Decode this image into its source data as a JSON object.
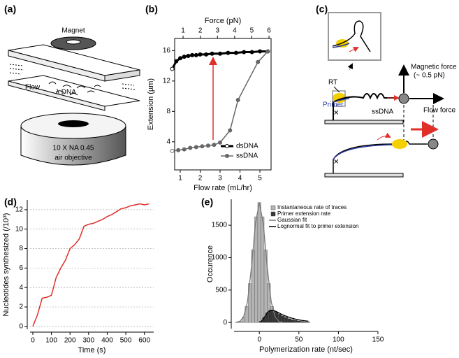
{
  "panel_labels": [
    "(a)",
    "(b)",
    "(c)",
    "(d)",
    "(e)"
  ],
  "diagram_a": {
    "magnet": "Magnet",
    "flow": "Flow",
    "dna": "λ DNA",
    "objective_1": "10 X NA 0.45",
    "objective_2": "air objective"
  },
  "diagram_c": {
    "magnetic_force": "Magnetic force",
    "magnetic_force_value": "(~ 0.5 pN)",
    "rt": "RT",
    "primer": "Primer",
    "ssdna": "ssDNA",
    "flow_force": "Flow force"
  },
  "chart_data": [
    {
      "type": "line",
      "xlabel": "Flow rate (mL/hr)",
      "ylabel": "Extension (µm)",
      "x2label": "Force (pN)",
      "xlim": [
        0.72,
        5.56
      ],
      "xticks": [
        1,
        2,
        3,
        4,
        5
      ],
      "x2lim": [
        0.51,
        6.12
      ],
      "x2ticks": [
        1,
        2,
        3,
        4,
        5,
        6
      ],
      "ylim": [
        0.3,
        17.6
      ],
      "yticks": [
        4,
        8,
        12,
        16
      ],
      "legend": "lower right",
      "series": [
        {
          "name": "dsDNA",
          "color": "#000000",
          "x": [
            0.6,
            0.8,
            1.0,
            1.2,
            1.4,
            1.6,
            1.8,
            2.0,
            2.3,
            2.6,
            3.0,
            3.4,
            3.8,
            4.2,
            4.6,
            5.0,
            5.4
          ],
          "values": [
            13.6,
            14.6,
            15.0,
            15.2,
            15.3,
            15.4,
            15.4,
            15.5,
            15.5,
            15.6,
            15.6,
            15.7,
            15.7,
            15.8,
            15.8,
            15.9,
            15.9
          ]
        },
        {
          "name": "ssDNA",
          "color": "#666666",
          "x": [
            0.6,
            0.9,
            1.2,
            1.5,
            1.8,
            2.1,
            2.4,
            2.7,
            3.0,
            3.5,
            3.9,
            4.9,
            5.4
          ],
          "values": [
            2.8,
            2.9,
            3.0,
            3.2,
            3.3,
            3.4,
            3.5,
            3.6,
            3.9,
            5.5,
            9.5,
            14.5,
            15.9
          ]
        }
      ]
    },
    {
      "type": "line",
      "xlabel": "Time (s)",
      "ylabel": "Nucleotides synthesized (/10³)",
      "xlim": [
        -15,
        650
      ],
      "xticks": [
        0,
        100,
        200,
        300,
        400,
        500,
        600
      ],
      "ylim": [
        -0.3,
        13
      ],
      "yticks": [
        0,
        2,
        4,
        6,
        8,
        10,
        12
      ],
      "grid": true,
      "series": [
        {
          "color": "#e0302a",
          "x": [
            0,
            25,
            50,
            75,
            100,
            125,
            150,
            175,
            200,
            225,
            250,
            275,
            300,
            325,
            350,
            375,
            400,
            425,
            450,
            475,
            500,
            525,
            550,
            575,
            600,
            625
          ],
          "values": [
            0,
            1.2,
            2.9,
            3.0,
            3.2,
            5.0,
            6.0,
            6.8,
            8.0,
            8.4,
            9.0,
            10.3,
            10.5,
            10.6,
            10.8,
            11.0,
            11.3,
            11.5,
            11.8,
            12.1,
            12.2,
            12.4,
            12.5,
            12.6,
            12.5,
            12.6
          ]
        }
      ]
    },
    {
      "type": "histogram",
      "xlabel": "Polymerization rate (nt/sec)",
      "ylabel": "Occurence",
      "xlim": [
        -32,
        150
      ],
      "xticks": [
        0,
        50,
        100,
        150
      ],
      "ylim": [
        -95,
        1900
      ],
      "yticks": [
        0,
        500,
        1000,
        1500
      ],
      "legend": "upper right",
      "series": [
        {
          "name": "Instantaneous rate of traces",
          "color": "#b4b4b4",
          "bins": [
            -30,
            -26,
            -22,
            -18,
            -14,
            -10,
            -6,
            -2,
            2,
            6,
            10,
            14,
            18,
            22,
            26,
            30,
            34,
            38,
            42
          ],
          "values": [
            4,
            20,
            81,
            250,
            600,
            1120,
            1630,
            1850,
            1630,
            1120,
            600,
            250,
            90,
            40,
            25,
            15,
            10,
            6
          ]
        },
        {
          "name": "Primer extension rate",
          "color": "#333333",
          "bins": [
            0,
            4,
            8,
            12,
            16,
            20,
            24,
            28,
            32,
            36,
            40,
            44,
            48,
            52,
            56,
            60,
            64
          ],
          "values": [
            20,
            80,
            150,
            190,
            180,
            160,
            130,
            100,
            80,
            60,
            45,
            35,
            25,
            18,
            12,
            8
          ]
        }
      ],
      "fits": [
        {
          "name": "Gaussian fit",
          "color": "#777777",
          "x": [
            -30,
            -25,
            -20,
            -15,
            -10,
            -5,
            0,
            5,
            10,
            15,
            20,
            25,
            30
          ],
          "values": [
            2,
            14,
            81,
            318,
            847,
            1522,
            1850,
            1522,
            847,
            318,
            81,
            14,
            2
          ]
        },
        {
          "name": "Lognormal fit to primer extension",
          "color": "#000000",
          "x": [
            2,
            6,
            10,
            14,
            18,
            22,
            26,
            30,
            38,
            46,
            54,
            62
          ],
          "values": [
            10,
            70,
            150,
            190,
            185,
            165,
            140,
            115,
            78,
            50,
            32,
            20
          ]
        }
      ]
    }
  ]
}
